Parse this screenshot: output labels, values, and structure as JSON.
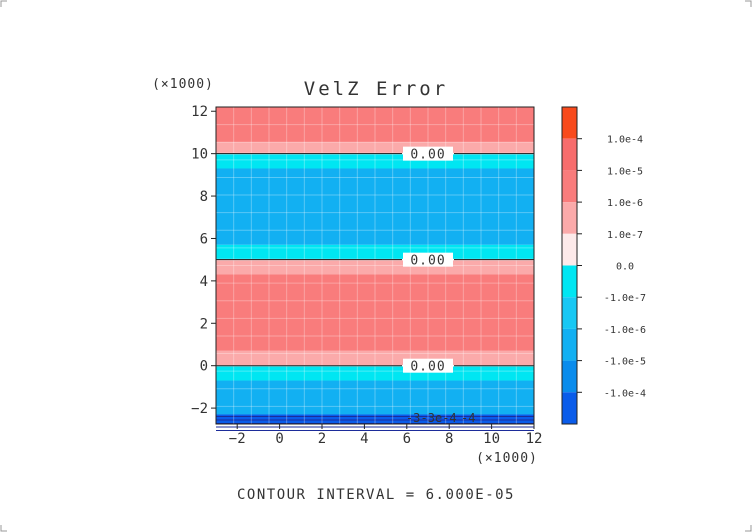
{
  "chart_data": {
    "type": "heatmap",
    "title": "VelZ Error",
    "x_scale_label": "(×1000)",
    "y_scale_label": "(×1000)",
    "xlim": [
      -3,
      12
    ],
    "ylim": [
      -2.75,
      12.2
    ],
    "x_ticks": [
      -2,
      0,
      2,
      4,
      6,
      8,
      10,
      12
    ],
    "y_ticks": [
      -2,
      0,
      2,
      4,
      6,
      8,
      10,
      12
    ],
    "footer": "CONTOUR INTERVAL = 6.000E-05",
    "levels": [
      {
        "label": "1.0e-4",
        "color": "#f84a1c"
      },
      {
        "label": "1.0e-5",
        "color": "#f76c6c"
      },
      {
        "label": "1.0e-6",
        "color": "#f97c7c"
      },
      {
        "label": "1.0e-7",
        "color": "#fbaaaa"
      },
      {
        "label": "0.0",
        "color": "#fdeaea"
      },
      {
        "label": "-1.0e-7",
        "color": "#00e6f2"
      },
      {
        "label": "-1.0e-6",
        "color": "#18c8f4"
      },
      {
        "label": "-1.0e-5",
        "color": "#12b0f2"
      },
      {
        "label": "-1.0e-4",
        "color": "#0a8cec"
      }
    ],
    "colorbar_extra_colors": [
      "#0a5cea"
    ],
    "bands": [
      {
        "y0": 10.55,
        "y1": 12.2,
        "color": "#f97c7c"
      },
      {
        "y0": 10.0,
        "y1": 10.55,
        "color": "#fbaaaa"
      },
      {
        "y0": 9.3,
        "y1": 10.0,
        "color": "#00e6f2"
      },
      {
        "y0": 5.7,
        "y1": 9.3,
        "color": "#12b0f2"
      },
      {
        "y0": 5.0,
        "y1": 5.7,
        "color": "#00e6f2"
      },
      {
        "y0": 4.3,
        "y1": 5.0,
        "color": "#fbaaaa"
      },
      {
        "y0": 0.7,
        "y1": 4.3,
        "color": "#f97c7c"
      },
      {
        "y0": 0.0,
        "y1": 0.7,
        "color": "#fbaaaa"
      },
      {
        "y0": -0.7,
        "y1": 0.0,
        "color": "#00e6f2"
      },
      {
        "y0": -2.3,
        "y1": -0.7,
        "color": "#12b0f2"
      },
      {
        "y0": -2.75,
        "y1": -2.3,
        "color": "#0a5cea"
      }
    ],
    "contour_lines": [
      {
        "y": 10.0,
        "label": "0.00",
        "label_x": 7.0
      },
      {
        "y": 5.0,
        "label": "0.00",
        "label_x": 7.0
      },
      {
        "y": 0.0,
        "label": "0.00",
        "label_x": 7.0
      }
    ],
    "bottom_clutter_labels": [
      {
        "x": 6.3,
        "text": "-3"
      },
      {
        "x": 7.5,
        "text": "-3e-4"
      },
      {
        "x": 8.9,
        "text": "-4"
      }
    ],
    "grid": true
  }
}
